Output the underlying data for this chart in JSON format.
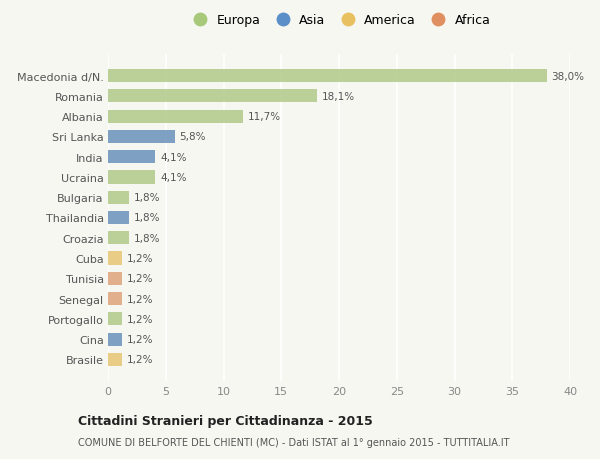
{
  "countries": [
    "Macedonia d/N.",
    "Romania",
    "Albania",
    "Sri Lanka",
    "India",
    "Ucraina",
    "Bulgaria",
    "Thailandia",
    "Croazia",
    "Cuba",
    "Tunisia",
    "Senegal",
    "Portogallo",
    "Cina",
    "Brasile"
  ],
  "values": [
    38.0,
    18.1,
    11.7,
    5.8,
    4.1,
    4.1,
    1.8,
    1.8,
    1.8,
    1.2,
    1.2,
    1.2,
    1.2,
    1.2,
    1.2
  ],
  "labels": [
    "38,0%",
    "18,1%",
    "11,7%",
    "5,8%",
    "4,1%",
    "4,1%",
    "1,8%",
    "1,8%",
    "1,8%",
    "1,2%",
    "1,2%",
    "1,2%",
    "1,2%",
    "1,2%",
    "1,2%"
  ],
  "continents": [
    "Europa",
    "Europa",
    "Europa",
    "Asia",
    "Asia",
    "Europa",
    "Europa",
    "Asia",
    "Europa",
    "America",
    "Africa",
    "Africa",
    "Europa",
    "Asia",
    "America"
  ],
  "colors": {
    "Europa": "#b5cc8e",
    "Asia": "#7097be",
    "America": "#e8c97a",
    "Africa": "#e0a882"
  },
  "legend_colors": {
    "Europa": "#a8c87a",
    "Asia": "#5b8fc7",
    "America": "#e8c060",
    "Africa": "#e09060"
  },
  "bg_color": "#f7f7f2",
  "plot_bg": "#f7f7f2",
  "title": "Cittadini Stranieri per Cittadinanza - 2015",
  "subtitle": "COMUNE DI BELFORTE DEL CHIENTI (MC) - Dati ISTAT al 1° gennaio 2015 - TUTTITALIA.IT",
  "xlim": [
    0,
    40
  ],
  "xticks": [
    0,
    5,
    10,
    15,
    20,
    25,
    30,
    35,
    40
  ]
}
